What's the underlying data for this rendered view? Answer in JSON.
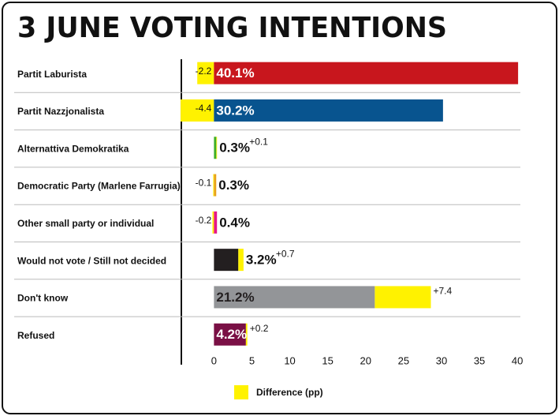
{
  "chart_data": {
    "type": "bar",
    "title": "3 JUNE VOTING INTENTIONS",
    "categories": [
      "Partit Laburista",
      "Partit Nazzjonalista",
      "Alternattiva Demokratika",
      "Democratic Party (Marlene Farrugia)",
      "Other small party or individual",
      "Would not vote / Still not decided",
      "Don't know",
      "Refused"
    ],
    "values": [
      40.1,
      30.2,
      0.3,
      0.3,
      0.4,
      3.2,
      21.2,
      4.2
    ],
    "value_labels": [
      "40.1%",
      "30.2%",
      "0.3%",
      "0.3%",
      "0.4%",
      "3.2%",
      "21.2%",
      "4.2%"
    ],
    "colors": [
      "#c8161d",
      "#08548f",
      "#3fae2a",
      "#e8a21b",
      "#e5168a",
      "#231f20",
      "#939598",
      "#7a1045"
    ],
    "difference": {
      "name": "Difference (pp)",
      "color": "#fff200",
      "values": [
        -2.2,
        -4.4,
        0.1,
        -0.1,
        -0.2,
        0.7,
        7.4,
        0.2
      ],
      "value_labels": [
        "-2.2",
        "-4.4",
        "+0.1",
        "-0.1",
        "-0.2",
        "+0.7",
        "+7.4",
        "+0.2"
      ]
    },
    "xlim": [
      -4.3,
      40.4
    ],
    "xticks": [
      0,
      5,
      10,
      15,
      20,
      25,
      30,
      35,
      40
    ]
  }
}
